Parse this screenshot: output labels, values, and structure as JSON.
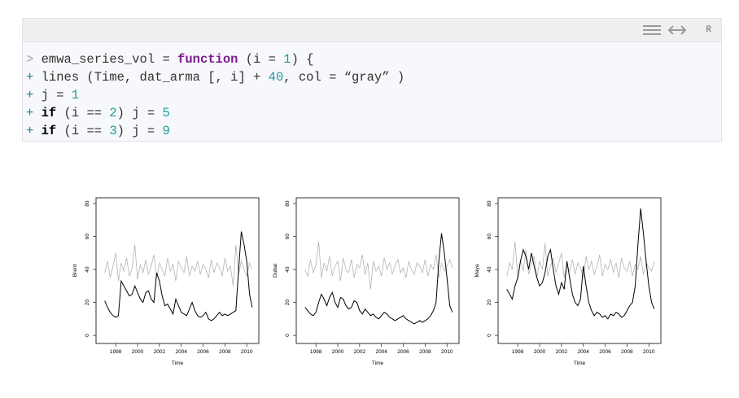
{
  "code": {
    "toolbar_label": "R",
    "lines": [
      [
        {
          "text": ">",
          "style": "prompt"
        },
        {
          "text": " emwa_series_vol = ",
          "style": "plain"
        },
        {
          "text": "function",
          "style": "keyword"
        },
        {
          "text": " (i = ",
          "style": "plain"
        },
        {
          "text": "1",
          "style": "number"
        },
        {
          "text": ") {",
          "style": "plain"
        }
      ],
      [
        {
          "text": "+",
          "style": "cont"
        },
        {
          "text": " lines (Time, dat_arma [, i] + ",
          "style": "plain"
        },
        {
          "text": "40",
          "style": "number"
        },
        {
          "text": ", col = ",
          "style": "plain"
        },
        {
          "text": "“gray”",
          "style": "string"
        },
        {
          "text": " )",
          "style": "plain"
        }
      ],
      [
        {
          "text": "+",
          "style": "cont"
        },
        {
          "text": " j = ",
          "style": "plain"
        },
        {
          "text": "1",
          "style": "number"
        }
      ],
      [
        {
          "text": "+",
          "style": "cont"
        },
        {
          "text": " ",
          "style": "plain"
        },
        {
          "text": "if",
          "style": "control"
        },
        {
          "text": " (i == ",
          "style": "plain"
        },
        {
          "text": "2",
          "style": "number"
        },
        {
          "text": ") j = ",
          "style": "plain"
        },
        {
          "text": "5",
          "style": "number"
        }
      ],
      [
        {
          "text": "+",
          "style": "cont"
        },
        {
          "text": " ",
          "style": "plain"
        },
        {
          "text": "if",
          "style": "control"
        },
        {
          "text": " (i == ",
          "style": "plain"
        },
        {
          "text": "3",
          "style": "number"
        },
        {
          "text": ") j = ",
          "style": "plain"
        },
        {
          "text": "9",
          "style": "number"
        }
      ]
    ]
  },
  "chart_data": [
    {
      "type": "line",
      "y_label": "Brent",
      "x_label": "Time",
      "x": [
        1997,
        1997.25,
        1997.5,
        1997.75,
        1998,
        1998.25,
        1998.5,
        1998.75,
        1999,
        1999.25,
        1999.5,
        1999.75,
        2000,
        2000.25,
        2000.5,
        2000.75,
        2001,
        2001.25,
        2001.5,
        2001.75,
        2002,
        2002.25,
        2002.5,
        2002.75,
        2003,
        2003.25,
        2003.5,
        2003.75,
        2004,
        2004.25,
        2004.5,
        2004.75,
        2005,
        2005.25,
        2005.5,
        2005.75,
        2006,
        2006.25,
        2006.5,
        2006.75,
        2007,
        2007.25,
        2007.5,
        2007.75,
        2008,
        2008.25,
        2008.5,
        2008.75,
        2009,
        2009.25,
        2009.5,
        2009.75,
        2010,
        2010.25,
        2010.5
      ],
      "xlim": [
        1996.2,
        2011.1
      ],
      "ylim": [
        -4.9,
        83.5
      ],
      "xticks": [
        1998,
        2000,
        2002,
        2004,
        2006,
        2008,
        2010
      ],
      "yticks": [
        0,
        20,
        40,
        60,
        80
      ],
      "series": [
        {
          "color": "#b4b4b4",
          "values": [
            38,
            45,
            35,
            42,
            50,
            33,
            44,
            39,
            47,
            36,
            41,
            55,
            34,
            43,
            38,
            46,
            37,
            42,
            49,
            35,
            44,
            40,
            36,
            47,
            39,
            43,
            33,
            45,
            41,
            38,
            48,
            36,
            42,
            39,
            45,
            37,
            43,
            40,
            35,
            46,
            38,
            44,
            41,
            36,
            47,
            39,
            42,
            30,
            55,
            37,
            45,
            40,
            36,
            44,
            40
          ]
        },
        {
          "color": "#000000",
          "values": [
            21,
            17,
            14,
            12,
            11,
            12,
            33,
            30,
            27,
            24,
            25,
            30,
            26,
            22,
            20,
            26,
            27,
            22,
            20,
            38,
            33,
            24,
            18,
            19,
            16,
            13,
            22,
            18,
            14,
            13,
            12,
            16,
            20,
            15,
            12,
            11,
            12,
            14,
            10,
            9,
            10,
            12,
            14,
            12,
            13,
            12,
            13,
            14,
            15,
            40,
            63,
            55,
            45,
            25,
            17
          ]
        }
      ]
    },
    {
      "type": "line",
      "y_label": "Dubai",
      "x_label": "Time",
      "x": [
        1997,
        1997.25,
        1997.5,
        1997.75,
        1998,
        1998.25,
        1998.5,
        1998.75,
        1999,
        1999.25,
        1999.5,
        1999.75,
        2000,
        2000.25,
        2000.5,
        2000.75,
        2001,
        2001.25,
        2001.5,
        2001.75,
        2002,
        2002.25,
        2002.5,
        2002.75,
        2003,
        2003.25,
        2003.5,
        2003.75,
        2004,
        2004.25,
        2004.5,
        2004.75,
        2005,
        2005.25,
        2005.5,
        2005.75,
        2006,
        2006.25,
        2006.5,
        2006.75,
        2007,
        2007.25,
        2007.5,
        2007.75,
        2008,
        2008.25,
        2008.5,
        2008.75,
        2009,
        2009.25,
        2009.5,
        2009.75,
        2010,
        2010.25,
        2010.5
      ],
      "xlim": [
        1996.2,
        2011.1
      ],
      "ylim": [
        -4.9,
        83.5
      ],
      "xticks": [
        1998,
        2000,
        2002,
        2004,
        2006,
        2008,
        2010
      ],
      "yticks": [
        0,
        20,
        40,
        60,
        80
      ],
      "series": [
        {
          "color": "#b4b4b4",
          "values": [
            40,
            36,
            46,
            38,
            43,
            57,
            35,
            44,
            39,
            48,
            36,
            42,
            45,
            33,
            47,
            40,
            38,
            46,
            35,
            43,
            41,
            49,
            37,
            44,
            28,
            45,
            39,
            42,
            36,
            47,
            40,
            44,
            37,
            43,
            46,
            38,
            41,
            35,
            45,
            40,
            37,
            44,
            42,
            38,
            46,
            36,
            43,
            40,
            49,
            35,
            44,
            39,
            42,
            46,
            41
          ]
        },
        {
          "color": "#000000",
          "values": [
            17,
            15,
            13,
            12,
            14,
            20,
            25,
            22,
            18,
            23,
            26,
            20,
            17,
            23,
            22,
            18,
            16,
            17,
            21,
            20,
            15,
            13,
            16,
            14,
            12,
            13,
            11,
            10,
            12,
            14,
            13,
            11,
            10,
            9,
            10,
            11,
            12,
            10,
            9,
            8,
            7,
            8,
            9,
            8,
            9,
            10,
            12,
            15,
            20,
            45,
            62,
            50,
            35,
            18,
            14
          ]
        }
      ]
    },
    {
      "type": "line",
      "y_label": "Maya",
      "x_label": "Time",
      "x": [
        1997,
        1997.25,
        1997.5,
        1997.75,
        1998,
        1998.25,
        1998.5,
        1998.75,
        1999,
        1999.25,
        1999.5,
        1999.75,
        2000,
        2000.25,
        2000.5,
        2000.75,
        2001,
        2001.25,
        2001.5,
        2001.75,
        2002,
        2002.25,
        2002.5,
        2002.75,
        2003,
        2003.25,
        2003.5,
        2003.75,
        2004,
        2004.25,
        2004.5,
        2004.75,
        2005,
        2005.25,
        2005.5,
        2005.75,
        2006,
        2006.25,
        2006.5,
        2006.75,
        2007,
        2007.25,
        2007.5,
        2007.75,
        2008,
        2008.25,
        2008.5,
        2008.75,
        2009,
        2009.25,
        2009.5,
        2009.75,
        2010,
        2010.25,
        2010.5
      ],
      "xlim": [
        1996.2,
        2011.1
      ],
      "ylim": [
        -4.9,
        83.5
      ],
      "xticks": [
        1998,
        2000,
        2002,
        2004,
        2006,
        2008,
        2010
      ],
      "yticks": [
        0,
        20,
        40,
        60,
        80
      ],
      "series": [
        {
          "color": "#b4b4b4",
          "values": [
            36,
            44,
            40,
            57,
            35,
            46,
            39,
            52,
            37,
            43,
            48,
            35,
            45,
            40,
            56,
            36,
            42,
            47,
            38,
            44,
            50,
            35,
            43,
            39,
            46,
            37,
            44,
            41,
            35,
            48,
            40,
            45,
            37,
            42,
            49,
            36,
            43,
            40,
            46,
            38,
            44,
            35,
            47,
            41,
            39,
            45,
            36,
            43,
            40,
            48,
            37,
            44,
            41,
            39,
            45
          ]
        },
        {
          "color": "#000000",
          "values": [
            28,
            25,
            22,
            30,
            35,
            45,
            52,
            48,
            40,
            50,
            42,
            35,
            30,
            32,
            38,
            48,
            52,
            40,
            30,
            25,
            32,
            28,
            45,
            35,
            25,
            20,
            18,
            22,
            42,
            30,
            20,
            15,
            12,
            14,
            13,
            11,
            12,
            10,
            13,
            12,
            14,
            13,
            11,
            12,
            15,
            18,
            20,
            30,
            55,
            77,
            62,
            45,
            30,
            20,
            16
          ]
        }
      ]
    }
  ]
}
